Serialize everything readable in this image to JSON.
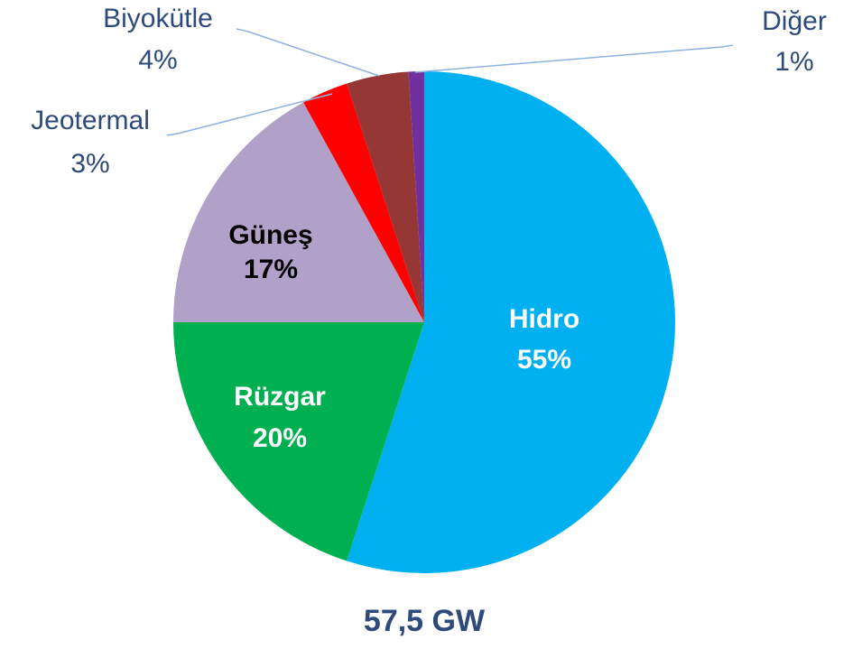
{
  "chart_data": {
    "type": "pie",
    "categories": [
      "Hidro",
      "Rüzgar",
      "Güneş",
      "Jeotermal",
      "Biyokütle",
      "Diğer"
    ],
    "values": [
      55,
      20,
      17,
      3,
      4,
      1
    ],
    "value_labels": [
      "55%",
      "20%",
      "17%",
      "3%",
      "4%",
      "1%"
    ],
    "colors": [
      "#00b0f0",
      "#00b050",
      "#b1a0c7",
      "#ff0000",
      "#953735",
      "#7030a0"
    ],
    "annotations": [
      "57,5 GW"
    ]
  }
}
